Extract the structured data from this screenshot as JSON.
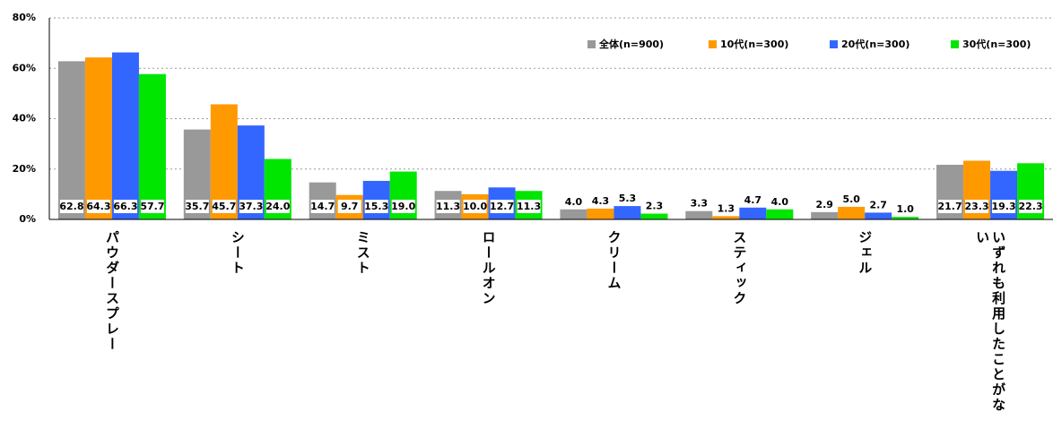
{
  "chart_data": {
    "type": "bar",
    "categories": [
      "パウダースプレー",
      "シート",
      "ミスト",
      "ロールオン",
      "クリーム",
      "スティック",
      "ジェル",
      "いずれも利用したことがない"
    ],
    "series": [
      {
        "name": "全体(n=900)",
        "color": "#999999",
        "values": [
          62.8,
          35.7,
          14.7,
          11.3,
          4.0,
          3.3,
          2.9,
          21.7
        ],
        "value_labels": [
          "62.8",
          "35.7",
          "14.7",
          "11.3",
          "4.0",
          "3.3",
          "2.9",
          "21.7"
        ]
      },
      {
        "name": "10代(n=300)",
        "color": "#ff9900",
        "values": [
          64.3,
          45.7,
          9.7,
          10.0,
          4.3,
          1.3,
          5.0,
          23.3
        ],
        "value_labels": [
          "64.3",
          "45.7",
          "9.7",
          "10.0",
          "4.3",
          "1.3",
          "5.0",
          "23.3"
        ]
      },
      {
        "name": "20代(n=300)",
        "color": "#3366ff",
        "values": [
          66.3,
          37.3,
          15.3,
          12.7,
          5.3,
          4.7,
          2.7,
          19.3
        ],
        "value_labels": [
          "66.3",
          "37.3",
          "15.3",
          "12.7",
          "5.3",
          "4.7",
          "2.7",
          "19.3"
        ]
      },
      {
        "name": "30代(n=300)",
        "color": "#00e600",
        "values": [
          57.7,
          24.0,
          19.0,
          11.3,
          2.3,
          4.0,
          1.0,
          22.3
        ],
        "value_labels": [
          "57.7",
          "24.0",
          "19.0",
          "11.3",
          "2.3",
          "4.0",
          "1.0",
          "22.3"
        ]
      }
    ],
    "ylim": [
      0,
      80
    ],
    "yticks": [
      {
        "value": 0,
        "label": "0%"
      },
      {
        "value": 20,
        "label": "20%"
      },
      {
        "value": 40,
        "label": "40%"
      },
      {
        "value": 60,
        "label": "60%"
      },
      {
        "value": 80,
        "label": "80%"
      }
    ],
    "grid": true,
    "legend": "top-right"
  }
}
